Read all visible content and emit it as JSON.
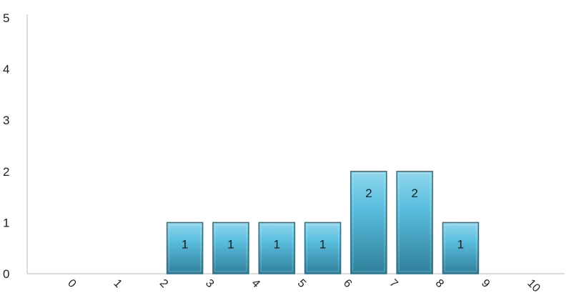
{
  "chart_data": {
    "type": "bar",
    "categories": [
      "0",
      "1",
      "2",
      "3",
      "4",
      "5",
      "6",
      "7",
      "8",
      "9",
      "10"
    ],
    "values": [
      0,
      0,
      1,
      1,
      1,
      1,
      2,
      2,
      1,
      0,
      0
    ],
    "data_labels": [
      "",
      "",
      "1",
      "1",
      "1",
      "1",
      "2",
      "2",
      "1",
      "",
      ""
    ],
    "yticks": [
      "0",
      "1",
      "2",
      "3",
      "4",
      "5"
    ],
    "ylim": [
      0,
      5
    ],
    "title": "",
    "xlabel": "",
    "ylabel": "",
    "grid": false,
    "x_tick_rotation": "slanted",
    "colors": {
      "bar_top": "#8fd6ec",
      "bar_mid": "#5bbfdf",
      "bar_bottom": "#2f7f9a",
      "bar_outline": "#2c6f86",
      "axis": "#bbbbbb",
      "text": "#222222"
    }
  }
}
